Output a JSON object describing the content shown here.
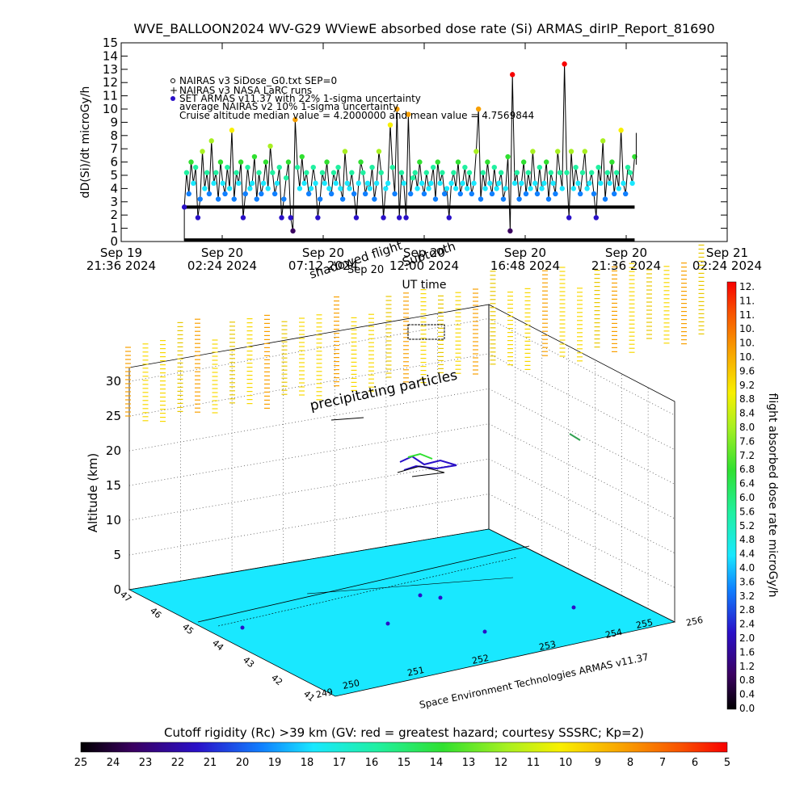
{
  "title": "WVE_BALLOON2024 WV-G29 WViewE absorbed dose rate (Si) ARMAS_dirIP_Report_81690",
  "chart_data": [
    {
      "type": "line",
      "ylabel": "dD(Si)/dt microGy/h",
      "xlabel": "UT time",
      "ylim": [
        0,
        15
      ],
      "yticks": [
        "0",
        "1",
        "2",
        "3",
        "4",
        "5",
        "6",
        "7",
        "8",
        "9",
        "10",
        "11",
        "12",
        "13",
        "14",
        "15"
      ],
      "xticks": [
        {
          "top": "Sep 19",
          "bottom": "21:36 2024"
        },
        {
          "top": "Sep 20",
          "bottom": "02:24 2024"
        },
        {
          "top": "Sep 20",
          "bottom": "07:12 2024"
        },
        {
          "top": "Sep 20",
          "bottom": "12:00 2024"
        },
        {
          "top": "Sep 20",
          "bottom": "16:48 2024"
        },
        {
          "top": "Sep 20",
          "bottom": "21:36 2024"
        },
        {
          "top": "Sep 21",
          "bottom": "02:24 2024"
        }
      ],
      "legend": [
        "NAIRAS v3 SiDose_G0.txt SEP=0",
        "NAIRAS v3 NASA LaRC runs",
        "SET ARMAS v11.37 with 22% 1-sigma uncertainty",
        "average NAIRAS v2 10% 1-sigma uncertainty",
        "Cruise altitude median value = 4.2000000 and mean value = 4.7569844"
      ],
      "overlay_labels": [
        "Sep 20",
        "shadowed flight",
        "Subtooth"
      ],
      "reference_lines": {
        "nairas_sep0": 0.05,
        "nairas_larc": 2.6
      },
      "series": [
        {
          "name": "SET ARMAS v11.37 with 22% 1-sigma uncertainty",
          "x_range_hours": [
            3.0,
            24.4
          ],
          "values": [
            2.6,
            5.2,
            3.6,
            6.0,
            4.4,
            5.6,
            1.8,
            3.2,
            6.8,
            4.0,
            5.2,
            3.6,
            7.6,
            4.4,
            5.2,
            3.2,
            6.0,
            4.4,
            3.6,
            5.6,
            4.0,
            8.4,
            3.2,
            5.2,
            4.4,
            6.0,
            1.8,
            3.6,
            5.6,
            4.0,
            4.4,
            6.4,
            3.2,
            5.2,
            3.6,
            4.4,
            6.0,
            4.0,
            7.2,
            5.2,
            3.6,
            4.4,
            5.6,
            1.8,
            3.2,
            4.8,
            6.0,
            1.8,
            0.8,
            9.2,
            5.6,
            4.0,
            6.4,
            4.4,
            5.2,
            3.6,
            4.0,
            5.6,
            4.4,
            1.8,
            3.2,
            5.2,
            4.4,
            6.0,
            4.0,
            3.6,
            5.2,
            4.4,
            5.6,
            4.0,
            3.2,
            6.8,
            4.4,
            4.0,
            5.2,
            3.6,
            1.8,
            4.4,
            6.0,
            5.2,
            3.6,
            4.4,
            4.0,
            5.6,
            3.2,
            4.4,
            6.8,
            5.2,
            1.8,
            4.0,
            4.4,
            8.8,
            5.6,
            3.6,
            10.0,
            1.8,
            5.2,
            4.4,
            1.8,
            9.6,
            3.6,
            4.8,
            5.2,
            4.0,
            6.0,
            4.4,
            3.6,
            5.2,
            4.0,
            4.4,
            5.6,
            3.2,
            6.0,
            4.4,
            5.2,
            3.6,
            4.0,
            1.8,
            4.4,
            5.2,
            4.0,
            6.0,
            3.6,
            4.4,
            5.6,
            4.0,
            5.2,
            3.6,
            4.4,
            6.8,
            10.0,
            3.2,
            5.2,
            4.0,
            6.0,
            4.4,
            3.6,
            5.6,
            4.0,
            4.4,
            5.2,
            3.2,
            4.0,
            6.4,
            0.8,
            12.6,
            4.4,
            5.2,
            3.2,
            4.4,
            6.0,
            3.6,
            5.2,
            4.0,
            6.8,
            4.4,
            3.6,
            5.6,
            4.0,
            4.4,
            6.0,
            3.2,
            5.2,
            4.4,
            3.6,
            6.8,
            5.2,
            4.0,
            13.4,
            5.2,
            1.8,
            6.8,
            4.0,
            5.6,
            4.4,
            3.6,
            5.2,
            6.8,
            4.0,
            4.4,
            5.2,
            3.6,
            1.8,
            5.6,
            4.4,
            7.6,
            3.2,
            5.2,
            4.4,
            6.0,
            3.6,
            5.2,
            4.0,
            8.4,
            4.4,
            3.6,
            5.6,
            5.2,
            4.4,
            6.4
          ]
        }
      ]
    },
    {
      "type": "scatter3d",
      "zlabel": "Altitude (km)",
      "zticks": [
        "0",
        "5",
        "10",
        "15",
        "20",
        "25",
        "30"
      ],
      "lat_ticks": [
        "41",
        "42",
        "43",
        "44",
        "45",
        "46",
        "47"
      ],
      "lon_ticks": [
        "249",
        "250",
        "251",
        "252",
        "253",
        "254",
        "255",
        "256"
      ],
      "annotations": [
        "precipitating particles",
        "Space Environment Technologies ARMAS v11.37"
      ],
      "surface_value": 4.0,
      "colorbar_label": "flight absorbed dose rate microGy/h",
      "colorbar_ticks": [
        "12.",
        "11.",
        "11.",
        "10.",
        "10.",
        "10.",
        "9.6",
        "9.2",
        "8.8",
        "8.4",
        "8.0",
        "7.6",
        "7.2",
        "6.8",
        "6.4",
        "6.0",
        "5.6",
        "5.2",
        "4.8",
        "4.4",
        "4.0",
        "3.6",
        "3.2",
        "2.8",
        "2.4",
        "2.0",
        "1.6",
        "1.2",
        "0.8",
        "0.4",
        "0.0"
      ]
    },
    {
      "type": "heatmap",
      "title": "Cutoff rigidity (Rc) >39 km (GV: red = greatest hazard; courtesy SSSRC; Kp=2)",
      "colorbar_ticks": [
        "25",
        "24",
        "23",
        "22",
        "21",
        "20",
        "19",
        "18",
        "17",
        "16",
        "15",
        "14",
        "13",
        "12",
        "11",
        "10",
        "9",
        "8",
        "7",
        "6",
        "5"
      ]
    }
  ]
}
